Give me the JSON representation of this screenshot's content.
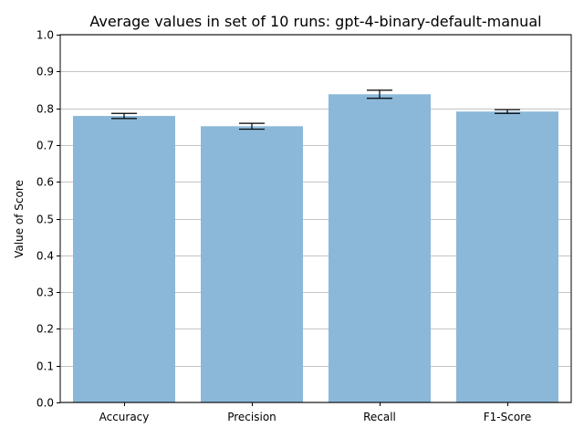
{
  "chart_data": {
    "type": "bar",
    "title": "Average values in set of 10 runs: gpt-4-binary-default-manual",
    "xlabel": "",
    "ylabel": "Value of Score",
    "categories": [
      "Accuracy",
      "Precision",
      "Recall",
      "F1-Score"
    ],
    "values": [
      0.779,
      0.751,
      0.838,
      0.791
    ],
    "error": [
      0.007,
      0.008,
      0.011,
      0.005
    ],
    "ylim": [
      0,
      1.0
    ],
    "yticks": [
      0.0,
      0.1,
      0.2,
      0.3,
      0.4,
      0.5,
      0.6,
      0.7,
      0.8,
      0.9,
      1.0
    ],
    "ytick_labels": [
      "0.0",
      "0.1",
      "0.2",
      "0.3",
      "0.4",
      "0.5",
      "0.6",
      "0.7",
      "0.8",
      "0.9",
      "1.0"
    ],
    "grid": "horizontal",
    "bar_color": "#8bb8d9",
    "error_color": "#000000",
    "grid_color": "#b0b0b0"
  }
}
